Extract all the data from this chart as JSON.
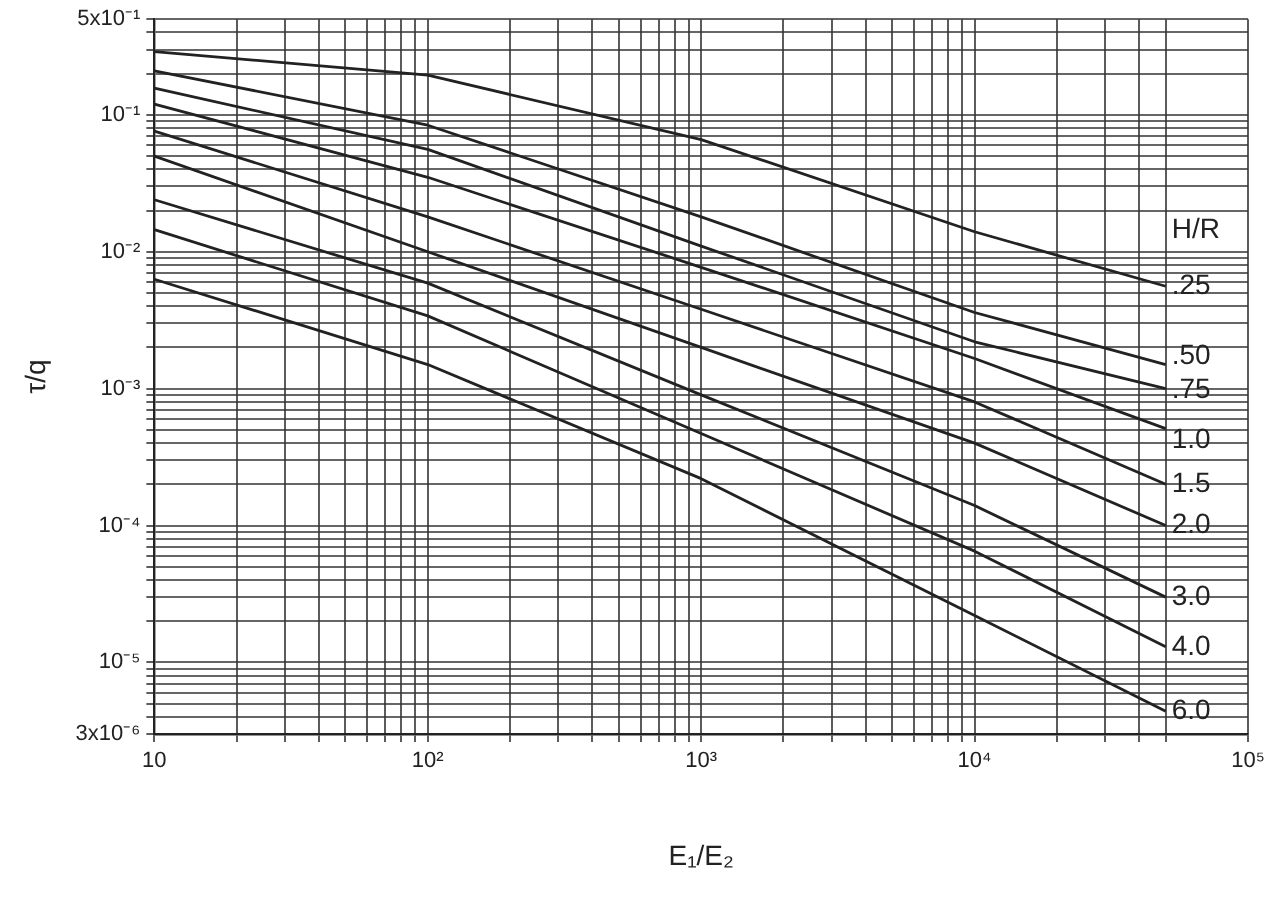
{
  "chart_data": {
    "type": "line",
    "xlabel": "E₁/E₂",
    "ylabel": "τ/q",
    "legend_title": "H/R",
    "log": "xy",
    "grid": true,
    "legend": false,
    "marker": "none",
    "line_style": "solid",
    "x": [
      10,
      100,
      1000,
      10000,
      50000
    ],
    "series": [
      {
        "name": ".25",
        "color": "#222222",
        "values": [
          0.29,
          0.195,
          0.066,
          0.014,
          0.0056
        ]
      },
      {
        "name": ".50",
        "color": "#222222",
        "values": [
          0.21,
          0.084,
          0.018,
          0.0036,
          0.0015
        ]
      },
      {
        "name": ".75",
        "color": "#222222",
        "values": [
          0.157,
          0.056,
          0.011,
          0.0022,
          0.001
        ]
      },
      {
        "name": "1.0",
        "color": "#222222",
        "values": [
          0.12,
          0.035,
          0.0077,
          0.00166,
          0.00051
        ]
      },
      {
        "name": "1.5",
        "color": "#222222",
        "values": [
          0.076,
          0.018,
          0.0038,
          0.0008,
          0.0002
        ]
      },
      {
        "name": "2.0",
        "color": "#222222",
        "values": [
          0.05,
          0.01,
          0.002,
          0.0004,
          0.0001
        ]
      },
      {
        "name": "3.0",
        "color": "#222222",
        "values": [
          0.024,
          0.0059,
          0.0009,
          0.00014,
          3e-05
        ]
      },
      {
        "name": "4.0",
        "color": "#222222",
        "values": [
          0.0145,
          0.0034,
          0.00047,
          6.5e-05,
          1.3e-05
        ]
      },
      {
        "name": "6.0",
        "color": "#222222",
        "values": [
          0.0063,
          0.0015,
          0.00022,
          2.2e-05,
          4.4e-06
        ]
      }
    ],
    "xlim": [
      10,
      100000
    ],
    "xticks": [
      10,
      {
        "value": 20,
        "label": null
      },
      {
        "value": 30,
        "label": null
      },
      {
        "value": 40,
        "label": null
      },
      {
        "value": 50,
        "label": null
      },
      {
        "value": 60,
        "label": null
      },
      {
        "value": 70,
        "label": null
      },
      {
        "value": 80,
        "label": null
      },
      {
        "value": 90,
        "label": null
      },
      {
        "value": 100,
        "label": "10²"
      },
      {
        "value": 200,
        "label": null
      },
      {
        "value": 300,
        "label": null
      },
      {
        "value": 400,
        "label": null
      },
      {
        "value": 500,
        "label": null
      },
      {
        "value": 600,
        "label": null
      },
      {
        "value": 700,
        "label": null
      },
      {
        "value": 800,
        "label": null
      },
      {
        "value": 900,
        "label": null
      },
      {
        "value": 1000,
        "label": "10³"
      },
      {
        "value": 2000,
        "label": null
      },
      {
        "value": 3000,
        "label": null
      },
      {
        "value": 4000,
        "label": null
      },
      {
        "value": 5000,
        "label": null
      },
      {
        "value": 6000,
        "label": null
      },
      {
        "value": 7000,
        "label": null
      },
      {
        "value": 8000,
        "label": null
      },
      {
        "value": 9000,
        "label": null
      },
      {
        "value": 10000,
        "label": "10⁴"
      },
      {
        "value": 20000,
        "label": null
      },
      {
        "value": 30000,
        "label": null
      },
      {
        "value": 40000,
        "label": null
      },
      {
        "value": 50000,
        "label": null
      },
      {
        "value": 100000,
        "label": "10⁵"
      }
    ],
    "ylim": [
      3e-06,
      0.5
    ],
    "yticks": [
      {
        "value": 3e-06,
        "label": "3x10⁻⁶"
      },
      {
        "value": 4e-06,
        "label": null
      },
      {
        "value": 5e-06,
        "label": null
      },
      {
        "value": 6e-06,
        "label": null
      },
      {
        "value": 7e-06,
        "label": null
      },
      {
        "value": 8e-06,
        "label": null
      },
      {
        "value": 9e-06,
        "label": null
      },
      {
        "value": 1e-05,
        "label": "10⁻⁵"
      },
      {
        "value": 2e-05,
        "label": null
      },
      {
        "value": 3e-05,
        "label": null
      },
      {
        "value": 4e-05,
        "label": null
      },
      {
        "value": 5e-05,
        "label": null
      },
      {
        "value": 6e-05,
        "label": null
      },
      {
        "value": 7e-05,
        "label": null
      },
      {
        "value": 8e-05,
        "label": null
      },
      {
        "value": 9e-05,
        "label": null
      },
      {
        "value": 0.0001,
        "label": "10⁻⁴"
      },
      {
        "value": 0.0002,
        "label": null
      },
      {
        "value": 0.0003,
        "label": null
      },
      {
        "value": 0.0004,
        "label": null
      },
      {
        "value": 0.0005,
        "label": null
      },
      {
        "value": 0.0006,
        "label": null
      },
      {
        "value": 0.0007,
        "label": null
      },
      {
        "value": 0.0008,
        "label": null
      },
      {
        "value": 0.0009,
        "label": null
      },
      {
        "value": 0.001,
        "label": "10⁻³"
      },
      {
        "value": 0.002,
        "label": null
      },
      {
        "value": 0.003,
        "label": null
      },
      {
        "value": 0.004,
        "label": null
      },
      {
        "value": 0.005,
        "label": null
      },
      {
        "value": 0.006,
        "label": null
      },
      {
        "value": 0.007,
        "label": null
      },
      {
        "value": 0.008,
        "label": null
      },
      {
        "value": 0.009,
        "label": null
      },
      {
        "value": 0.01,
        "label": "10⁻²"
      },
      {
        "value": 0.02,
        "label": null
      },
      {
        "value": 0.03,
        "label": null
      },
      {
        "value": 0.04,
        "label": null
      },
      {
        "value": 0.05,
        "label": null
      },
      {
        "value": 0.06,
        "label": null
      },
      {
        "value": 0.07,
        "label": null
      },
      {
        "value": 0.08,
        "label": null
      },
      {
        "value": 0.09,
        "label": null
      },
      {
        "value": 0.1,
        "label": "10⁻¹"
      },
      {
        "value": 0.2,
        "label": null
      },
      {
        "value": 0.3,
        "label": null
      },
      {
        "value": 0.4,
        "label": null
      },
      {
        "value": 0.5,
        "label": "5x10⁻¹"
      }
    ]
  }
}
